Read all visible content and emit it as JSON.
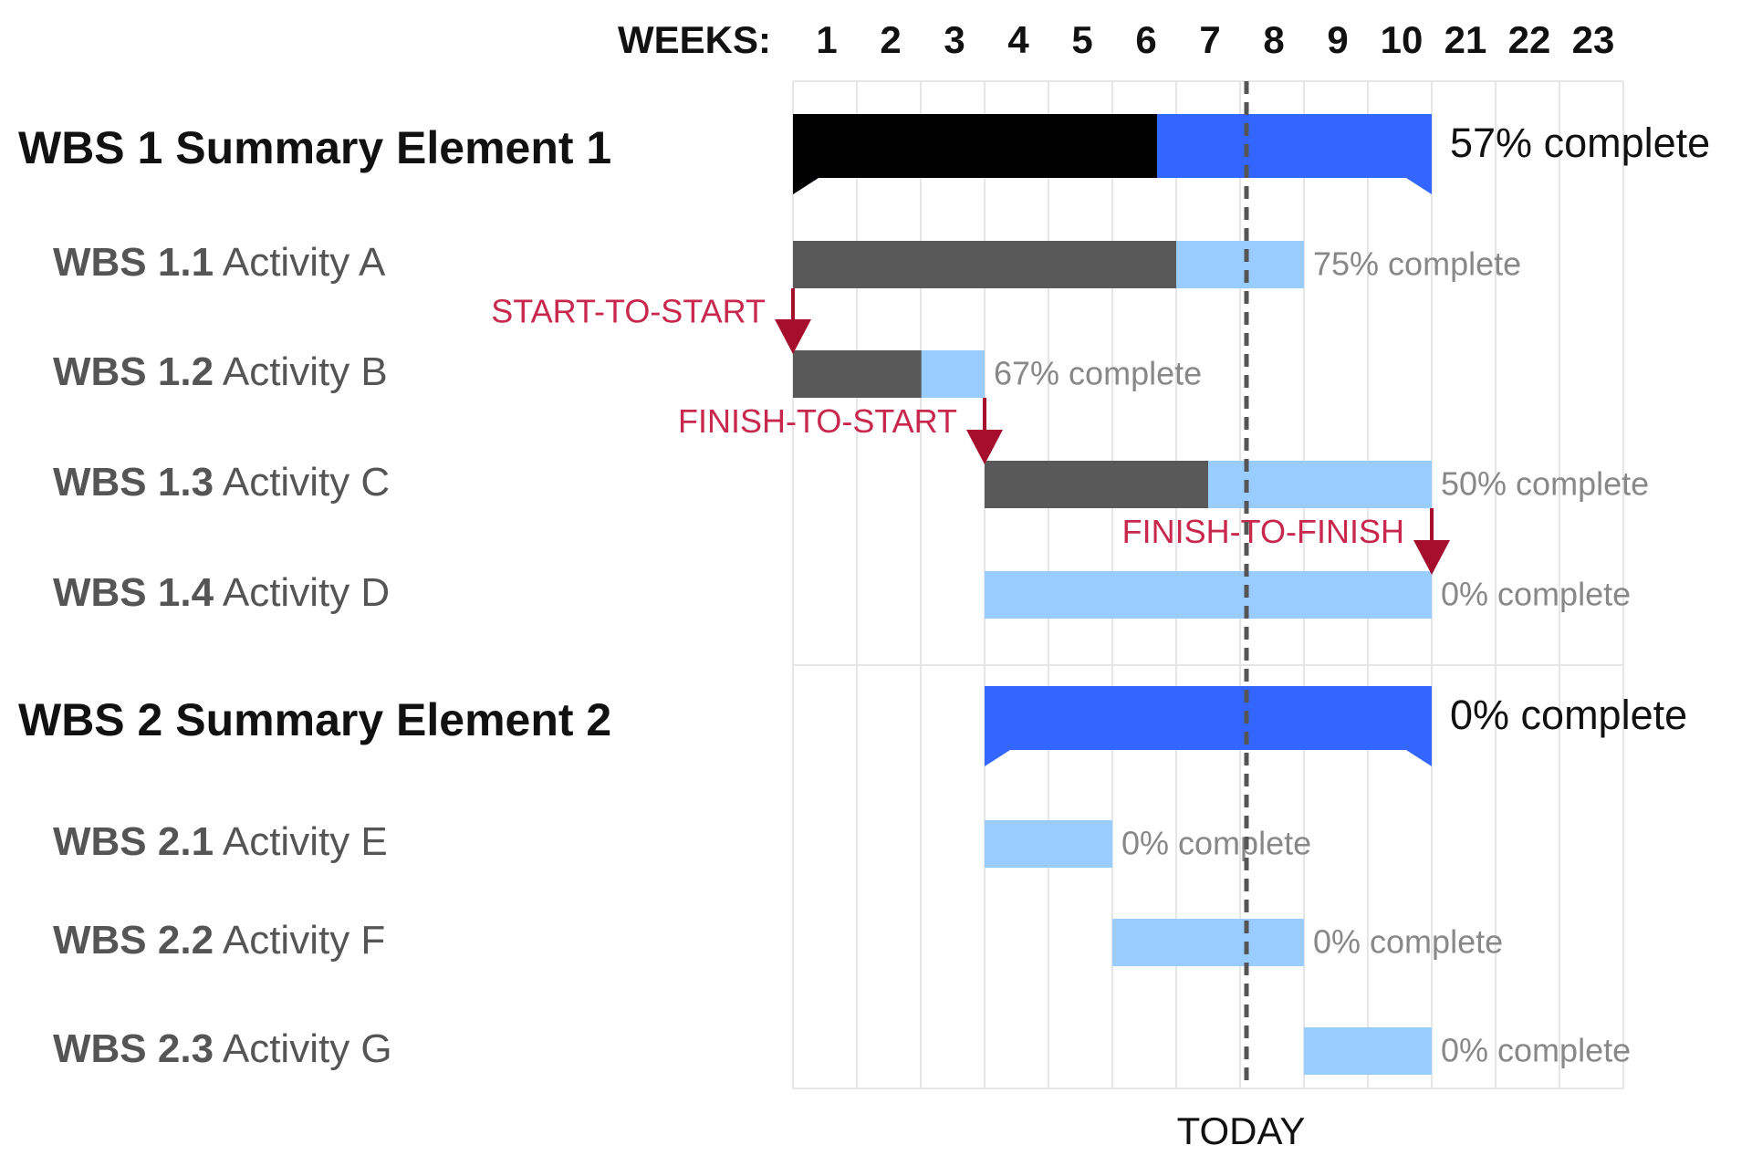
{
  "chart_data": {
    "type": "gantt",
    "axis_label": "WEEKS:",
    "categories": [
      "1",
      "2",
      "3",
      "4",
      "5",
      "6",
      "7",
      "8",
      "9",
      "10",
      "21",
      "22",
      "23"
    ],
    "xlim": [
      0,
      13
    ],
    "tasks": [
      {
        "wbs": "WBS 1",
        "name": "Summary Element 1",
        "summary": true,
        "start": 0,
        "end": 10,
        "progress": 57,
        "progress_label": "57% complete"
      },
      {
        "wbs": "WBS 1.1",
        "name": "Activity A",
        "summary": false,
        "start": 0,
        "end": 8,
        "progress": 75,
        "progress_label": "75% complete"
      },
      {
        "wbs": "WBS 1.2",
        "name": "Activity B",
        "summary": false,
        "start": 0,
        "end": 3,
        "progress": 67,
        "progress_label": "67% complete"
      },
      {
        "wbs": "WBS 1.3",
        "name": "Activity C",
        "summary": false,
        "start": 3,
        "end": 10,
        "progress": 50,
        "progress_label": "50% complete"
      },
      {
        "wbs": "WBS 1.4",
        "name": "Activity D",
        "summary": false,
        "start": 3,
        "end": 10,
        "progress": 0,
        "progress_label": "0% complete"
      },
      {
        "wbs": "WBS 2",
        "name": "Summary Element 2",
        "summary": true,
        "start": 3,
        "end": 10,
        "progress": 0,
        "progress_label": "0% complete"
      },
      {
        "wbs": "WBS 2.1",
        "name": "Activity E",
        "summary": false,
        "start": 3,
        "end": 5,
        "progress": 0,
        "progress_label": "0% complete"
      },
      {
        "wbs": "WBS 2.2",
        "name": "Activity F",
        "summary": false,
        "start": 5,
        "end": 8,
        "progress": 0,
        "progress_label": "0% complete"
      },
      {
        "wbs": "WBS 2.3",
        "name": "Activity G",
        "summary": false,
        "start": 8,
        "end": 10,
        "progress": 0,
        "progress_label": "0% complete"
      }
    ],
    "dependencies": [
      {
        "label": "START-TO-START",
        "from": 1,
        "to": 2
      },
      {
        "label": "FINISH-TO-START",
        "from": 2,
        "to": 3
      },
      {
        "label": "FINISH-TO-FINISH",
        "from": 3,
        "to": 4
      }
    ],
    "today": 7.1,
    "today_label": "TODAY",
    "colors": {
      "summary_done": "#000000",
      "summary_todo": "#3366ff",
      "activity_done": "#595959",
      "activity_todo": "#99ccff",
      "dependency": "#a50f2d"
    }
  }
}
